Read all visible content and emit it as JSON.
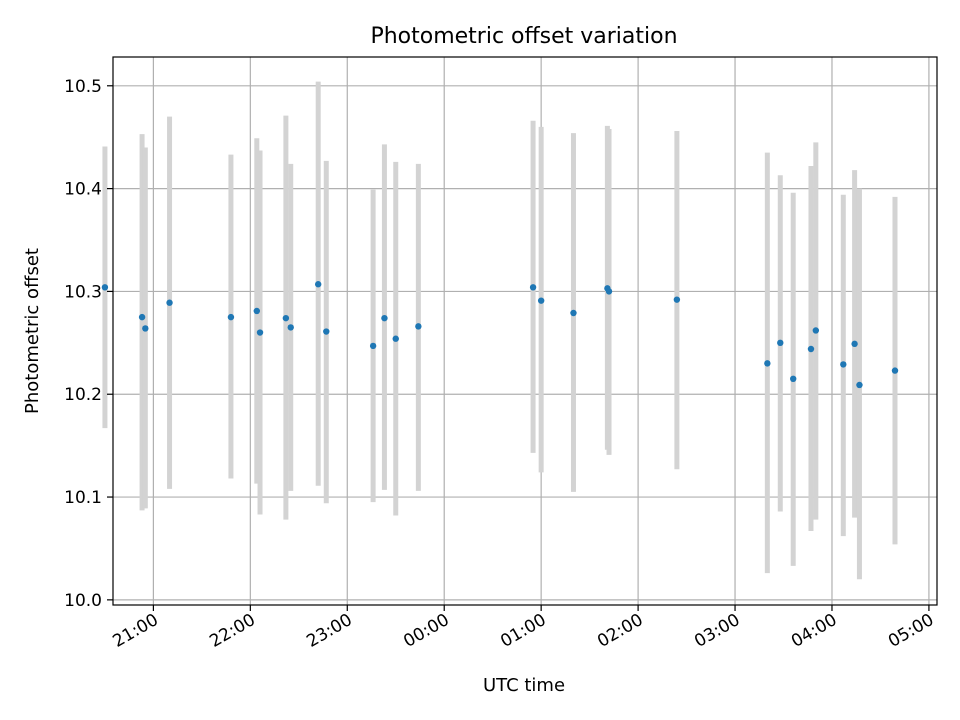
{
  "chart_data": {
    "type": "scatter",
    "title": "Photometric offset variation",
    "xlabel": "UTC time",
    "ylabel": "Photometric offset",
    "x_axis_kind": "time",
    "x_range": [
      "20:35",
      "05:05"
    ],
    "ylim": [
      9.995,
      10.528
    ],
    "y_ticks": [
      "10.0",
      "10.1",
      "10.2",
      "10.3",
      "10.4",
      "10.5"
    ],
    "x_ticks": [
      "21:00",
      "22:00",
      "23:00",
      "00:00",
      "01:00",
      "02:00",
      "03:00",
      "04:00",
      "05:00"
    ],
    "grid": true,
    "colors": {
      "point": "#1f77b4",
      "errorbar": "#d3d3d3",
      "grid": "#b0b0b0"
    },
    "points": [
      {
        "t": "20:30",
        "y": 10.304,
        "lo": 10.167,
        "hi": 10.441
      },
      {
        "t": "20:53",
        "y": 10.275,
        "lo": 10.087,
        "hi": 10.453
      },
      {
        "t": "20:55",
        "y": 10.264,
        "lo": 10.089,
        "hi": 10.44
      },
      {
        "t": "21:10",
        "y": 10.289,
        "lo": 10.108,
        "hi": 10.47
      },
      {
        "t": "21:48",
        "y": 10.275,
        "lo": 10.118,
        "hi": 10.433
      },
      {
        "t": "22:04",
        "y": 10.281,
        "lo": 10.113,
        "hi": 10.449
      },
      {
        "t": "22:06",
        "y": 10.26,
        "lo": 10.083,
        "hi": 10.437
      },
      {
        "t": "22:22",
        "y": 10.274,
        "lo": 10.078,
        "hi": 10.471
      },
      {
        "t": "22:25",
        "y": 10.265,
        "lo": 10.106,
        "hi": 10.424
      },
      {
        "t": "22:42",
        "y": 10.307,
        "lo": 10.111,
        "hi": 10.504
      },
      {
        "t": "22:47",
        "y": 10.261,
        "lo": 10.094,
        "hi": 10.427
      },
      {
        "t": "23:16",
        "y": 10.247,
        "lo": 10.095,
        "hi": 10.399
      },
      {
        "t": "23:23",
        "y": 10.274,
        "lo": 10.107,
        "hi": 10.443
      },
      {
        "t": "23:30",
        "y": 10.254,
        "lo": 10.082,
        "hi": 10.426
      },
      {
        "t": "23:44",
        "y": 10.266,
        "lo": 10.106,
        "hi": 10.424
      },
      {
        "t": "00:55",
        "y": 10.304,
        "lo": 10.143,
        "hi": 10.466
      },
      {
        "t": "01:00",
        "y": 10.291,
        "lo": 10.124,
        "hi": 10.46
      },
      {
        "t": "01:20",
        "y": 10.279,
        "lo": 10.105,
        "hi": 10.454
      },
      {
        "t": "01:41",
        "y": 10.303,
        "lo": 10.146,
        "hi": 10.461
      },
      {
        "t": "01:42",
        "y": 10.3,
        "lo": 10.141,
        "hi": 10.458
      },
      {
        "t": "02:24",
        "y": 10.292,
        "lo": 10.127,
        "hi": 10.456
      },
      {
        "t": "03:20",
        "y": 10.23,
        "lo": 10.026,
        "hi": 10.435
      },
      {
        "t": "03:28",
        "y": 10.25,
        "lo": 10.086,
        "hi": 10.413
      },
      {
        "t": "03:36",
        "y": 10.215,
        "lo": 10.033,
        "hi": 10.396
      },
      {
        "t": "03:47",
        "y": 10.244,
        "lo": 10.067,
        "hi": 10.422
      },
      {
        "t": "03:50",
        "y": 10.262,
        "lo": 10.078,
        "hi": 10.445
      },
      {
        "t": "04:07",
        "y": 10.229,
        "lo": 10.062,
        "hi": 10.394
      },
      {
        "t": "04:14",
        "y": 10.249,
        "lo": 10.08,
        "hi": 10.418
      },
      {
        "t": "04:17",
        "y": 10.209,
        "lo": 10.02,
        "hi": 10.4
      },
      {
        "t": "04:39",
        "y": 10.223,
        "lo": 10.054,
        "hi": 10.392
      }
    ]
  }
}
